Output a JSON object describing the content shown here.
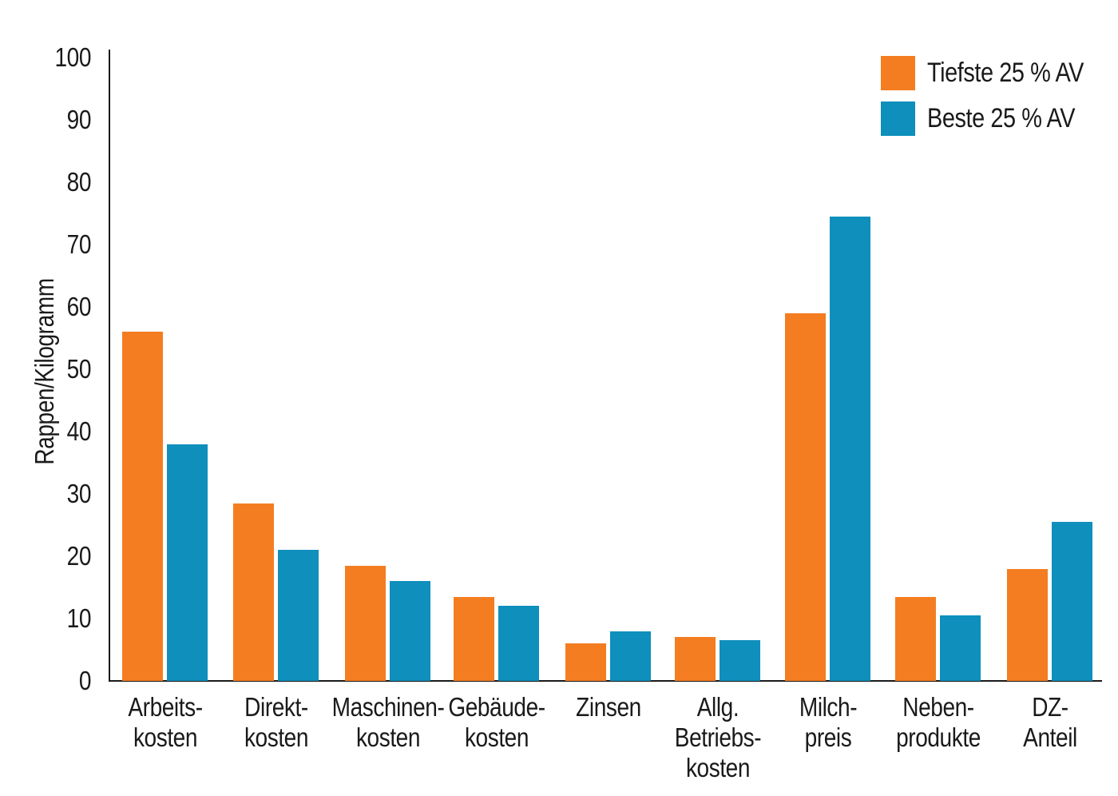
{
  "chart_data": {
    "type": "bar",
    "title": "",
    "ylabel": "Rappen/Kilogramm",
    "xlabel": "",
    "ylim": [
      0,
      100
    ],
    "yticks": [
      0,
      10,
      20,
      30,
      40,
      50,
      60,
      70,
      80,
      90,
      100
    ],
    "grid": false,
    "legend_position": "top-right",
    "axis_color": "#1a1a1a",
    "text_color": "#1a1a1a",
    "background_color": "#ffffff",
    "categories": [
      "Arbeits-\nkosten",
      "Direkt-\nkosten",
      "Maschinen-\nkosten",
      "Gebäude-\nkosten",
      "Zinsen",
      "Allg.\nBetriebs-\nkosten",
      "Milch-\npreis",
      "Neben-\nprodukte",
      "DZ-\nAnteil"
    ],
    "series": [
      {
        "name": "Tiefste 25 % AV",
        "color": "#F47D21",
        "values": [
          56,
          28.5,
          18.5,
          13.5,
          6,
          7,
          59,
          13.5,
          18
        ]
      },
      {
        "name": "Beste 25 % AV",
        "color": "#0E8FBC",
        "values": [
          38,
          21,
          16,
          12,
          8,
          6.5,
          74.5,
          10.5,
          25.5
        ]
      }
    ]
  }
}
